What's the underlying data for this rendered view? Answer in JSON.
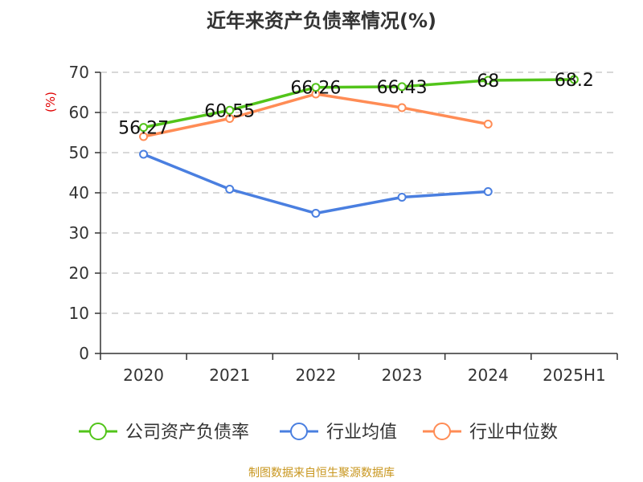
{
  "chart_data": {
    "type": "line",
    "title": "近年来资产负债率情况(%)",
    "ylabel": "(%)",
    "categories": [
      "2020",
      "2021",
      "2022",
      "2023",
      "2024",
      "2025H1"
    ],
    "ylim": [
      0,
      70
    ],
    "yticks": [
      0,
      10,
      20,
      30,
      40,
      50,
      60,
      70
    ],
    "grid": true,
    "legend_position": "bottom",
    "series": [
      {
        "name": "公司资产负债率",
        "color": "#52c41a",
        "values": [
          56.27,
          60.55,
          66.26,
          66.43,
          68,
          68.2
        ],
        "labels": [
          "56.27",
          "60.55",
          "66.26",
          "66.43",
          "68",
          "68.2"
        ]
      },
      {
        "name": "行业均值",
        "color": "#4a7fe0",
        "values": [
          49.6,
          40.9,
          34.9,
          38.9,
          40.3,
          null
        ]
      },
      {
        "name": "行业中位数",
        "color": "#ff8c55",
        "values": [
          54.0,
          58.5,
          64.6,
          61.2,
          57.1,
          null
        ]
      }
    ]
  },
  "source": "制图数据来自恒生聚源数据库"
}
